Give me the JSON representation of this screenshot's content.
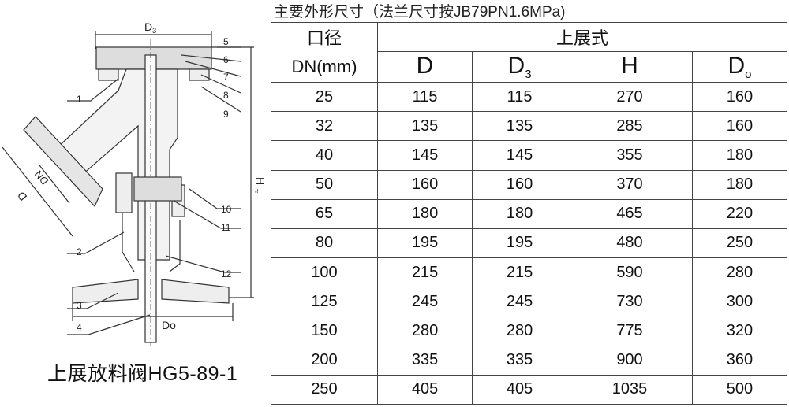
{
  "drawing": {
    "labels": {
      "D3": "D",
      "D3_sub": "3",
      "DN": "DN",
      "D": "D",
      "H": "H",
      "H_sym": "≈",
      "Do": "Do"
    },
    "part_numbers": [
      "1",
      "2",
      "3",
      "4",
      "5",
      "6",
      "7",
      "8",
      "9",
      "10",
      "11",
      "12"
    ],
    "caption": "上展放料阀HG5-89-1"
  },
  "table": {
    "title": "主要外形尺寸（法兰尺寸按JB79PN1.6MPa)",
    "header_left_top": "口径",
    "header_left_bottom": "DN(mm)",
    "header_group": "上展式",
    "columns": [
      {
        "main": "D",
        "sub": ""
      },
      {
        "main": "D",
        "sub": "3"
      },
      {
        "main": "H",
        "sub": ""
      },
      {
        "main": "D",
        "sub": "o"
      }
    ],
    "rows": [
      [
        "25",
        "115",
        "115",
        "270",
        "160"
      ],
      [
        "32",
        "135",
        "135",
        "285",
        "160"
      ],
      [
        "40",
        "145",
        "145",
        "355",
        "180"
      ],
      [
        "50",
        "160",
        "160",
        "370",
        "180"
      ],
      [
        "65",
        "180",
        "180",
        "465",
        "220"
      ],
      [
        "80",
        "195",
        "195",
        "480",
        "250"
      ],
      [
        "100",
        "215",
        "215",
        "590",
        "280"
      ],
      [
        "125",
        "245",
        "245",
        "730",
        "300"
      ],
      [
        "150",
        "280",
        "280",
        "775",
        "320"
      ],
      [
        "200",
        "335",
        "335",
        "900",
        "360"
      ],
      [
        "250",
        "405",
        "405",
        "1035",
        "500"
      ]
    ]
  }
}
